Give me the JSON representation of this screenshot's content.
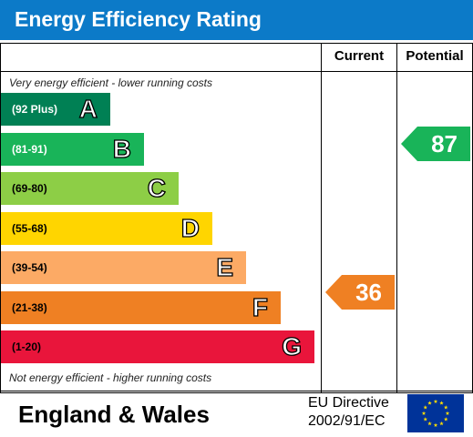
{
  "title": "Energy Efficiency Rating",
  "columns": {
    "current": "Current",
    "potential": "Potential"
  },
  "notes": {
    "top": "Very energy efficient - lower running costs",
    "bottom": "Not energy efficient - higher running costs"
  },
  "bands": [
    {
      "range": "(92 Plus)",
      "letter": "A",
      "color": "#008054",
      "text_color": "#ffffff"
    },
    {
      "range": "(81-91)",
      "letter": "B",
      "color": "#19b459",
      "text_color": "#ffffff"
    },
    {
      "range": "(69-80)",
      "letter": "C",
      "color": "#8dce46",
      "text_color": "#000000"
    },
    {
      "range": "(55-68)",
      "letter": "D",
      "color": "#ffd500",
      "text_color": "#000000"
    },
    {
      "range": "(39-54)",
      "letter": "E",
      "color": "#fcaa65",
      "text_color": "#000000"
    },
    {
      "range": "(21-38)",
      "letter": "F",
      "color": "#ef8023",
      "text_color": "#000000"
    },
    {
      "range": "(1-20)",
      "letter": "G",
      "color": "#e9153b",
      "text_color": "#000000"
    }
  ],
  "ratings": {
    "current": {
      "value": "36",
      "band": "F",
      "color": "#ef8023"
    },
    "potential": {
      "value": "87",
      "band": "B",
      "color": "#19b459"
    }
  },
  "footer": {
    "region": "England & Wales",
    "directive_line1": "EU Directive",
    "directive_line2": "2002/91/EC",
    "flag_icon": "eu-flag-icon"
  },
  "colors": {
    "title_bar": "#0c7ac8",
    "eu_flag": "#003399",
    "eu_stars": "#ffdd00"
  }
}
